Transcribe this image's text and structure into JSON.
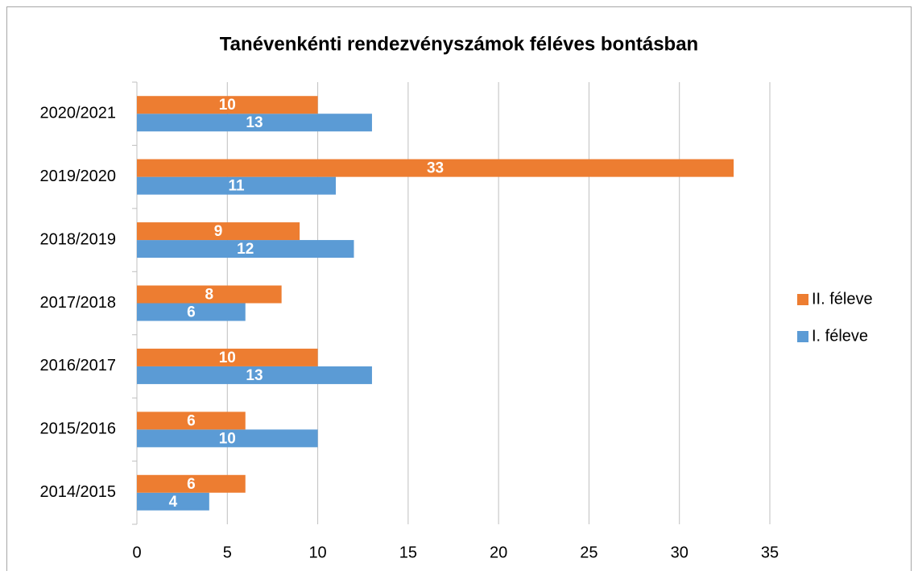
{
  "chart_data": {
    "type": "bar",
    "orientation": "horizontal",
    "title": "Tanévenkénti rendezvényszámok féléves bontásban",
    "categories": [
      "2014/2015",
      "2015/2016",
      "2016/2017",
      "2017/2018",
      "2018/2019",
      "2019/2020",
      "2020/2021"
    ],
    "series": [
      {
        "name": "I. féleve",
        "color": "#5b9bd5",
        "values": [
          4,
          10,
          13,
          6,
          12,
          11,
          13
        ]
      },
      {
        "name": "II. féleve",
        "color": "#ed7d31",
        "values": [
          6,
          6,
          10,
          8,
          9,
          33,
          10
        ]
      }
    ],
    "xlim": [
      0,
      35
    ],
    "xticks": [
      0,
      5,
      10,
      15,
      20,
      25,
      30,
      35
    ],
    "grid": true,
    "legend": "right"
  }
}
